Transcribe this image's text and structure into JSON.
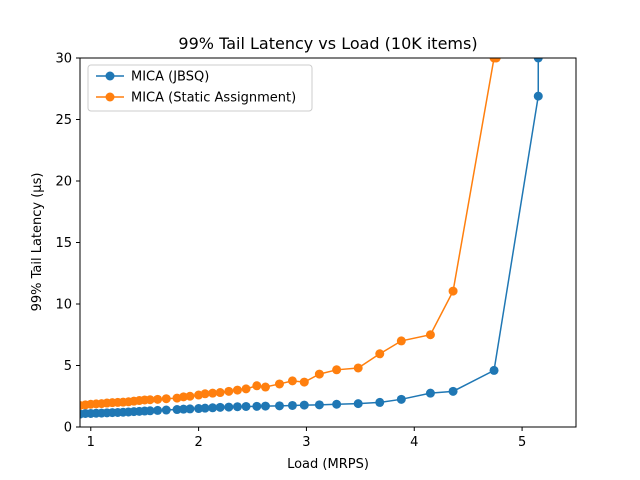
{
  "chart_data": {
    "type": "line",
    "title": "99% Tail Latency vs Load (10K items)",
    "xlabel": "Load (MRPS)",
    "ylabel": "99% Tail Latency (μs)",
    "xlim": [
      0.9,
      5.5
    ],
    "ylim": [
      0,
      30
    ],
    "xticks": [
      1,
      2,
      3,
      4,
      5
    ],
    "yticks": [
      0,
      5,
      10,
      15,
      20,
      25,
      30
    ],
    "legend_position": "top-left",
    "grid": false,
    "series": [
      {
        "name": "MICA (JBSQ)",
        "color": "#1f77b4",
        "x": [
          0.9,
          0.95,
          1.0,
          1.05,
          1.1,
          1.15,
          1.2,
          1.25,
          1.3,
          1.35,
          1.4,
          1.45,
          1.5,
          1.55,
          1.62,
          1.7,
          1.8,
          1.86,
          1.92,
          2.0,
          2.06,
          2.13,
          2.2,
          2.28,
          2.36,
          2.44,
          2.54,
          2.62,
          2.75,
          2.87,
          2.98,
          3.12,
          3.28,
          3.48,
          3.68,
          3.88,
          4.15,
          4.36,
          4.74,
          5.15,
          5.15
        ],
        "y": [
          1.05,
          1.1,
          1.1,
          1.12,
          1.13,
          1.15,
          1.17,
          1.18,
          1.2,
          1.22,
          1.25,
          1.27,
          1.3,
          1.32,
          1.35,
          1.38,
          1.42,
          1.45,
          1.47,
          1.5,
          1.53,
          1.56,
          1.6,
          1.62,
          1.65,
          1.67,
          1.68,
          1.7,
          1.72,
          1.75,
          1.78,
          1.8,
          1.85,
          1.9,
          2.0,
          2.25,
          2.75,
          2.9,
          4.6,
          26.9,
          30
        ]
      },
      {
        "name": "MICA (Static Assignment)",
        "color": "#ff7f0e",
        "x": [
          0.9,
          0.95,
          1.0,
          1.05,
          1.1,
          1.15,
          1.2,
          1.25,
          1.3,
          1.35,
          1.4,
          1.45,
          1.5,
          1.55,
          1.62,
          1.7,
          1.8,
          1.86,
          1.92,
          2.0,
          2.06,
          2.13,
          2.2,
          2.28,
          2.36,
          2.44,
          2.54,
          2.62,
          2.75,
          2.87,
          2.98,
          3.12,
          3.28,
          3.48,
          3.68,
          3.88,
          4.15,
          4.36,
          4.74,
          4.76
        ],
        "y": [
          1.75,
          1.8,
          1.85,
          1.88,
          1.9,
          1.95,
          1.98,
          2.0,
          2.02,
          2.05,
          2.1,
          2.15,
          2.2,
          2.22,
          2.25,
          2.3,
          2.35,
          2.45,
          2.5,
          2.6,
          2.7,
          2.75,
          2.8,
          2.9,
          3.0,
          3.1,
          3.35,
          3.25,
          3.5,
          3.75,
          3.65,
          4.3,
          4.65,
          4.8,
          5.95,
          7.0,
          7.5,
          11.05,
          30,
          30
        ]
      }
    ]
  }
}
